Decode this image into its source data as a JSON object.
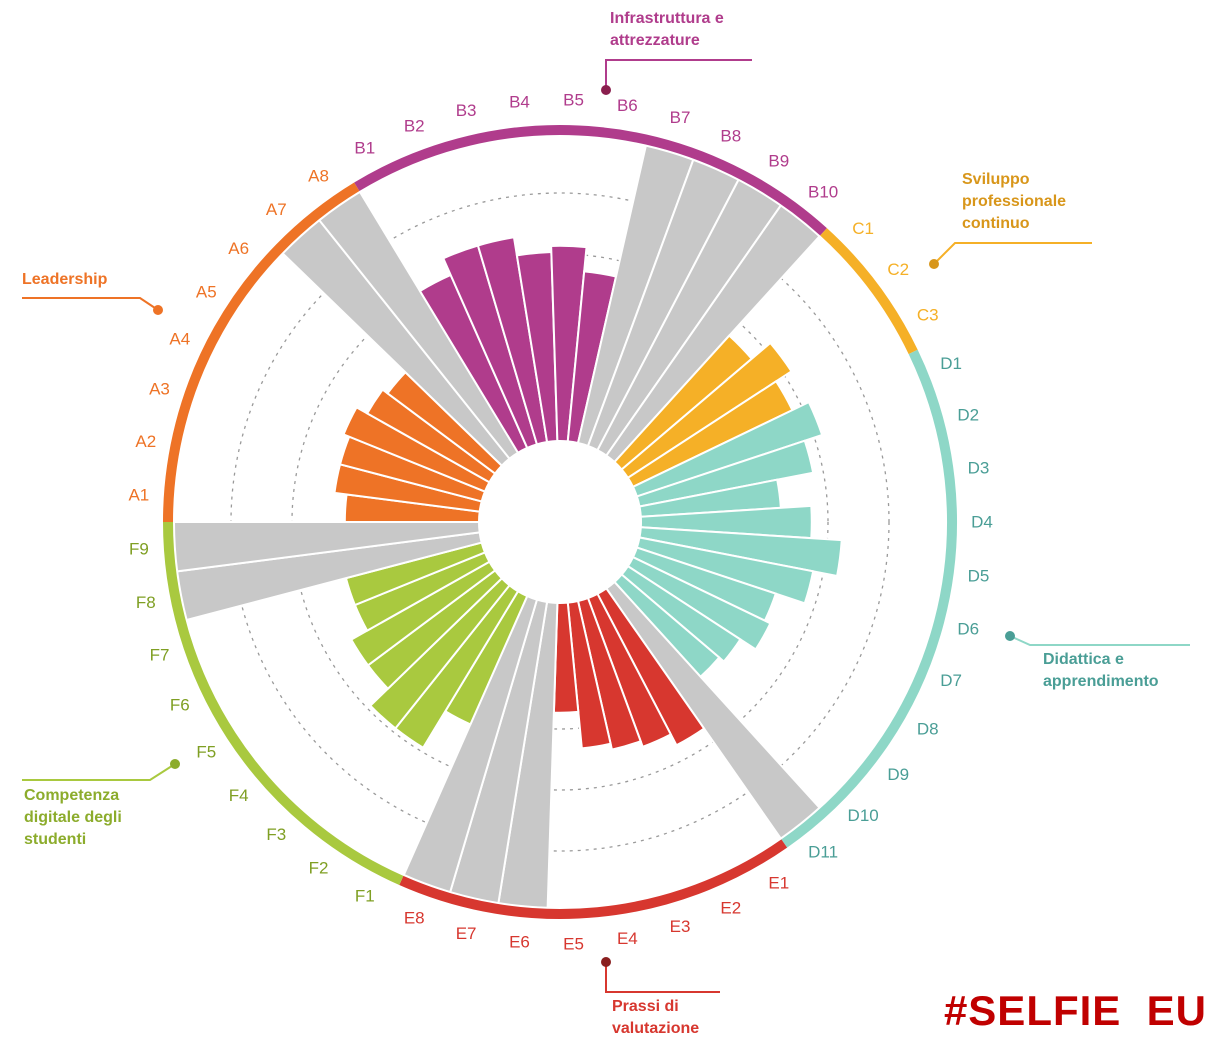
{
  "brand_text": "#SELFIE  EU",
  "chart_data": {
    "type": "bar",
    "polar": true,
    "title": "",
    "rmax": 5,
    "grid": "dashed circles",
    "empty_color": "#c8c8c8",
    "groups": [
      {
        "name_lines": [
          "Leadership"
        ],
        "color": "#ee7326",
        "items": [
          {
            "label": "A1",
            "value": 2.2
          },
          {
            "label": "A2",
            "value": 2.4
          },
          {
            "label": "A3",
            "value": 2.4
          },
          {
            "label": "A4",
            "value": 2.5
          },
          {
            "label": "A5",
            "value": 2.3
          },
          {
            "label": "A6",
            "value": 2.2
          },
          {
            "label": "A7",
            "value": null
          },
          {
            "label": "A8",
            "value": null
          }
        ]
      },
      {
        "name_lines": [
          "Infrastruttura e",
          "attrezzature"
        ],
        "color": "#b03c8c",
        "items": [
          {
            "label": "B1",
            "value": 3.1
          },
          {
            "label": "B2",
            "value": 3.4
          },
          {
            "label": "B3",
            "value": 3.4
          },
          {
            "label": "B4",
            "value": 3.1
          },
          {
            "label": "B5",
            "value": 3.2
          },
          {
            "label": "B6",
            "value": 2.8
          },
          {
            "label": "B7",
            "value": null
          },
          {
            "label": "B8",
            "value": null
          },
          {
            "label": "B9",
            "value": null
          },
          {
            "label": "B10",
            "value": null
          }
        ]
      },
      {
        "name_lines": [
          "Sviluppo",
          "professionale",
          "continuo"
        ],
        "color": "#f5b027",
        "items": [
          {
            "label": "C1",
            "value": 2.8
          },
          {
            "label": "C2",
            "value": 3.2
          },
          {
            "label": "C3",
            "value": 2.9
          }
        ]
      },
      {
        "name_lines": [
          "Didattica e",
          "apprendimento"
        ],
        "color": "#8ed7c7",
        "items": [
          {
            "label": "D1",
            "value": 3.2
          },
          {
            "label": "D2",
            "value": 2.9
          },
          {
            "label": "D3",
            "value": 2.3
          },
          {
            "label": "D4",
            "value": 2.8
          },
          {
            "label": "D5",
            "value": 3.3
          },
          {
            "label": "D6",
            "value": 2.9
          },
          {
            "label": "D7",
            "value": 2.4
          },
          {
            "label": "D8",
            "value": 2.5
          },
          {
            "label": "D9",
            "value": 2.2
          },
          {
            "label": "D10",
            "value": 2.1
          },
          {
            "label": "D11",
            "value": null
          }
        ]
      },
      {
        "name_lines": [
          "Prassi di",
          "valutazione"
        ],
        "color": "#d7372f",
        "items": [
          {
            "label": "E1",
            "value": 2.8
          },
          {
            "label": "E2",
            "value": 2.6
          },
          {
            "label": "E3",
            "value": 2.5
          },
          {
            "label": "E4",
            "value": 2.4
          },
          {
            "label": "E5",
            "value": 1.8
          },
          {
            "label": "E6",
            "value": null
          },
          {
            "label": "E7",
            "value": null
          },
          {
            "label": "E8",
            "value": null
          }
        ]
      },
      {
        "name_lines": [
          "Competenza",
          "digitale degli",
          "studenti"
        ],
        "color": "#a9c93f",
        "items": [
          {
            "label": "F1",
            "value": 2.3
          },
          {
            "label": "F2",
            "value": 3.0
          },
          {
            "label": "F3",
            "value": 3.0
          },
          {
            "label": "F4",
            "value": 2.6
          },
          {
            "label": "F5",
            "value": 2.6
          },
          {
            "label": "F6",
            "value": 2.3
          },
          {
            "label": "F7",
            "value": 2.3
          },
          {
            "label": "F8",
            "value": null
          },
          {
            "label": "F9",
            "value": null
          }
        ]
      }
    ]
  }
}
